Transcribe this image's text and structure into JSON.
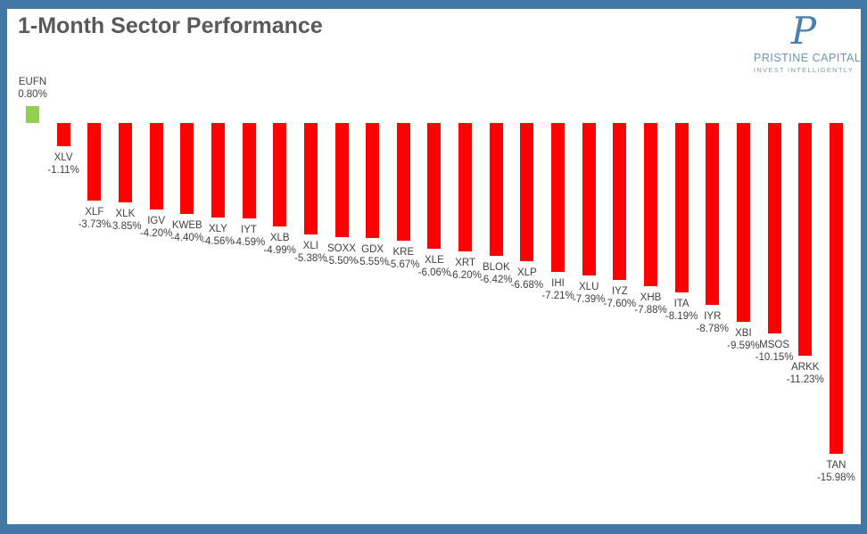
{
  "header": {
    "title": "1-Month Sector Performance"
  },
  "logo": {
    "monogram": "P",
    "name": "PRISTINE CAPITAL",
    "tagline": "INVEST INTELLIGENTLY"
  },
  "colors": {
    "frame_blue": "#4178A5",
    "positive_green": "#92D050",
    "negative_red": "#FF0000",
    "title_gray": "#595959",
    "label_gray": "#404040",
    "logo_blue": "#4C7FAF"
  },
  "chart_data": {
    "type": "bar",
    "title": "1-Month Sector Performance",
    "xlabel": "",
    "ylabel": "",
    "ylim": [
      -16.5,
      1.5
    ],
    "grid": false,
    "legend": false,
    "orientation": "vertical",
    "value_label_format": "percent",
    "positive_color": "#92D050",
    "negative_color": "#FF0000",
    "categories": [
      "EUFN",
      "XLV",
      "XLF",
      "XLK",
      "IGV",
      "KWEB",
      "XLY",
      "IYT",
      "XLB",
      "XLI",
      "SOXX",
      "GDX",
      "KRE",
      "XLE",
      "XRT",
      "BLOK",
      "XLP",
      "IHI",
      "XLU",
      "IYZ",
      "XHB",
      "ITA",
      "IYR",
      "XBI",
      "MSOS",
      "ARKK",
      "TAN"
    ],
    "values": [
      0.8,
      -1.11,
      -3.73,
      -3.85,
      -4.2,
      -4.4,
      -4.56,
      -4.59,
      -4.99,
      -5.38,
      -5.5,
      -5.55,
      -5.67,
      -6.06,
      -6.2,
      -6.42,
      -6.68,
      -7.21,
      -7.39,
      -7.6,
      -7.88,
      -8.19,
      -8.78,
      -9.59,
      -10.15,
      -11.23,
      -15.98
    ],
    "labels": [
      "0.80%",
      "-1.11%",
      "-3.73%",
      "-3.85%",
      "-4.20%",
      "-4.40%",
      "-4.56%",
      "-4.59%",
      "-4.99%",
      "-5.38%",
      "-5.50%",
      "-5.55%",
      "-5.67%",
      "-6.06%",
      "-6.20%",
      "-6.42%",
      "-6.68%",
      "-7.21%",
      "-7.39%",
      "-7.60%",
      "-7.88%",
      "-8.19%",
      "-8.78%",
      "-9.59%",
      "-10.15%",
      "-11.23%",
      "-15.98%"
    ]
  }
}
